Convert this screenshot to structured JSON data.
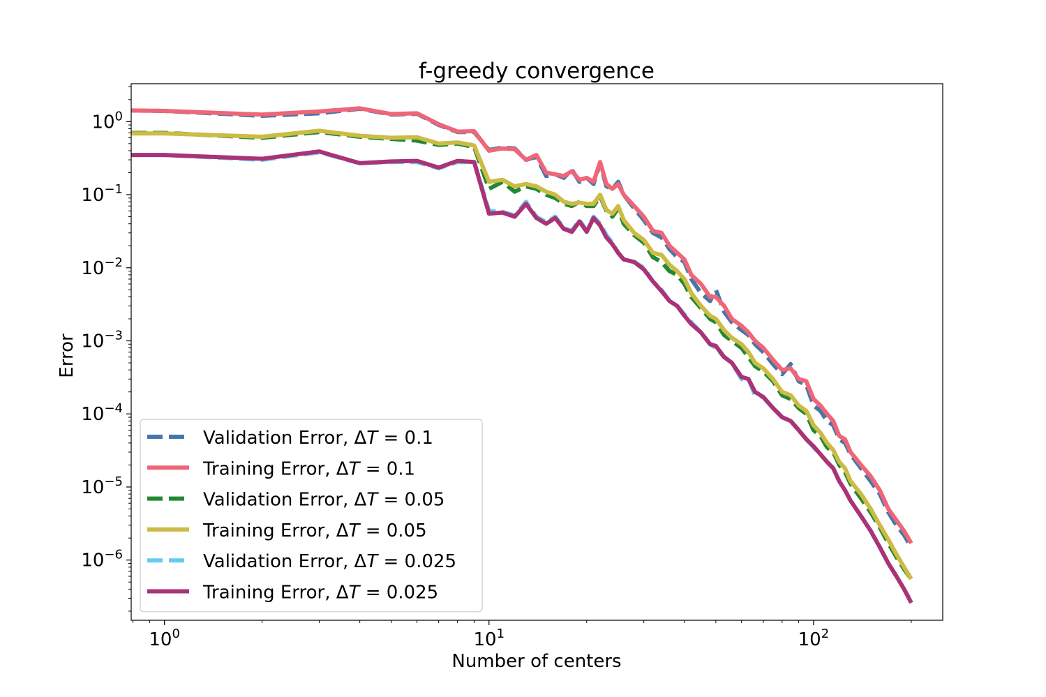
{
  "chart_data": {
    "type": "line",
    "title": "f-greedy convergence",
    "xlabel": "Number of centers",
    "ylabel": "Error",
    "xscale": "log",
    "yscale": "log",
    "xlim": [
      0.79,
      250
    ],
    "ylim": [
      1.5e-07,
      3.3
    ],
    "xticks": [
      {
        "value": 1,
        "base": "10",
        "exp": "0"
      },
      {
        "value": 10,
        "base": "10",
        "exp": "1"
      },
      {
        "value": 100,
        "base": "10",
        "exp": "2"
      }
    ],
    "yticks": [
      {
        "value": 1,
        "base": "10",
        "exp": "0"
      },
      {
        "value": 0.1,
        "base": "10",
        "exp": "−1"
      },
      {
        "value": 0.01,
        "base": "10",
        "exp": "−2"
      },
      {
        "value": 0.001,
        "base": "10",
        "exp": "−3"
      },
      {
        "value": 0.0001,
        "base": "10",
        "exp": "−4"
      },
      {
        "value": 1e-05,
        "base": "10",
        "exp": "−5"
      },
      {
        "value": 1e-06,
        "base": "10",
        "exp": "−6"
      }
    ],
    "legend_position": "lower-left",
    "series": [
      {
        "name": "Validation Error, ΔT = 0.1",
        "label_prefix": "Validation Error, Δ",
        "label_var": "T",
        "label_suffix": " = 0.1",
        "color": "#4477aa",
        "style": "dashed",
        "x": [
          0.79,
          1,
          2,
          3,
          4,
          5,
          6,
          7,
          8,
          9,
          10,
          11,
          12,
          13,
          14,
          15,
          16,
          17,
          18,
          19,
          20,
          21,
          22,
          23,
          24,
          25,
          26,
          28,
          30,
          32,
          34,
          36,
          38,
          40,
          42,
          45,
          48,
          50,
          53,
          56,
          60,
          63,
          66,
          70,
          75,
          80,
          85,
          90,
          95,
          100,
          105,
          110,
          115,
          120,
          125,
          130,
          140,
          150,
          160,
          170,
          180,
          190,
          200
        ],
        "y": [
          1.42,
          1.4,
          1.2,
          1.3,
          1.5,
          1.25,
          1.28,
          0.9,
          0.72,
          0.72,
          0.41,
          0.44,
          0.43,
          0.3,
          0.33,
          0.18,
          0.19,
          0.17,
          0.22,
          0.15,
          0.17,
          0.14,
          0.27,
          0.13,
          0.12,
          0.15,
          0.1,
          0.065,
          0.045,
          0.03,
          0.026,
          0.018,
          0.014,
          0.012,
          0.007,
          0.0045,
          0.0035,
          0.005,
          0.0025,
          0.0018,
          0.0014,
          0.0012,
          0.0009,
          0.0007,
          0.00048,
          0.00035,
          0.00048,
          0.00028,
          0.00025,
          0.00013,
          0.00011,
          8e-05,
          7e-05,
          4.5e-05,
          4e-05,
          2.8e-05,
          1.8e-05,
          1.2e-05,
          8e-06,
          4.5e-06,
          3e-06,
          2.2e-06,
          1.5e-06
        ]
      },
      {
        "name": "Training Error, ΔT = 0.1",
        "label_prefix": "Training Error, Δ",
        "label_var": "T",
        "label_suffix": " = 0.1",
        "color": "#ee6677",
        "style": "solid",
        "x": [
          0.79,
          1,
          2,
          3,
          4,
          5,
          6,
          7,
          8,
          9,
          10,
          11,
          12,
          13,
          14,
          15,
          16,
          17,
          18,
          19,
          20,
          21,
          22,
          23,
          24,
          25,
          26,
          28,
          30,
          32,
          34,
          36,
          38,
          40,
          42,
          45,
          48,
          50,
          53,
          56,
          60,
          63,
          66,
          70,
          75,
          80,
          85,
          90,
          95,
          100,
          105,
          110,
          115,
          120,
          125,
          130,
          140,
          150,
          160,
          170,
          180,
          190,
          200
        ],
        "y": [
          1.42,
          1.4,
          1.25,
          1.38,
          1.52,
          1.27,
          1.3,
          0.92,
          0.73,
          0.74,
          0.4,
          0.43,
          0.42,
          0.3,
          0.35,
          0.2,
          0.19,
          0.18,
          0.21,
          0.16,
          0.17,
          0.15,
          0.28,
          0.14,
          0.12,
          0.14,
          0.1,
          0.07,
          0.05,
          0.032,
          0.03,
          0.02,
          0.016,
          0.013,
          0.008,
          0.006,
          0.004,
          0.004,
          0.003,
          0.002,
          0.0016,
          0.0013,
          0.001,
          0.0008,
          0.00055,
          0.0004,
          0.00042,
          0.0003,
          0.00028,
          0.00016,
          0.00013,
          0.0001,
          8e-05,
          5e-05,
          4.5e-05,
          3e-05,
          2e-05,
          1.4e-05,
          9e-06,
          5e-06,
          3.5e-06,
          2.5e-06,
          1.7e-06
        ]
      },
      {
        "name": "Validation Error, ΔT = 0.05",
        "label_prefix": "Validation Error, Δ",
        "label_var": "T",
        "label_suffix": " = 0.05",
        "color": "#228833",
        "style": "dashed",
        "x": [
          0.79,
          1,
          2,
          3,
          4,
          5,
          6,
          7,
          8,
          9,
          10,
          11,
          12,
          13,
          14,
          15,
          16,
          17,
          18,
          19,
          20,
          21,
          22,
          23,
          24,
          25,
          26,
          28,
          30,
          32,
          34,
          36,
          38,
          40,
          42,
          45,
          48,
          50,
          53,
          56,
          60,
          63,
          66,
          70,
          75,
          80,
          85,
          90,
          95,
          100,
          105,
          110,
          115,
          120,
          125,
          130,
          140,
          150,
          160,
          170,
          180,
          190,
          200
        ],
        "y": [
          0.7,
          0.7,
          0.6,
          0.72,
          0.62,
          0.58,
          0.55,
          0.48,
          0.5,
          0.45,
          0.12,
          0.15,
          0.11,
          0.13,
          0.12,
          0.1,
          0.09,
          0.075,
          0.07,
          0.08,
          0.07,
          0.07,
          0.095,
          0.06,
          0.05,
          0.065,
          0.04,
          0.028,
          0.022,
          0.014,
          0.012,
          0.009,
          0.008,
          0.006,
          0.004,
          0.0028,
          0.002,
          0.0018,
          0.0012,
          0.001,
          0.0008,
          0.0006,
          0.00045,
          0.00038,
          0.00028,
          0.00018,
          0.00016,
          0.00012,
          0.0001,
          6e-05,
          5e-05,
          3.5e-05,
          3e-05,
          2e-05,
          1.6e-05,
          1.1e-05,
          7e-06,
          4.5e-06,
          2.8e-06,
          1.7e-06,
          1.1e-06,
          7.5e-07,
          5.5e-07
        ]
      },
      {
        "name": "Training Error, ΔT = 0.05",
        "label_prefix": "Training Error, Δ",
        "label_var": "T",
        "label_suffix": " = 0.05",
        "color": "#ccbb44",
        "style": "solid",
        "x": [
          0.79,
          1,
          2,
          3,
          4,
          5,
          6,
          7,
          8,
          9,
          10,
          11,
          12,
          13,
          14,
          15,
          16,
          17,
          18,
          19,
          20,
          21,
          22,
          23,
          24,
          25,
          26,
          28,
          30,
          32,
          34,
          36,
          38,
          40,
          42,
          45,
          48,
          50,
          53,
          56,
          60,
          63,
          66,
          70,
          75,
          80,
          85,
          90,
          95,
          100,
          105,
          110,
          115,
          120,
          125,
          130,
          140,
          150,
          160,
          170,
          180,
          190,
          200
        ],
        "y": [
          0.69,
          0.69,
          0.62,
          0.75,
          0.64,
          0.6,
          0.61,
          0.5,
          0.52,
          0.47,
          0.15,
          0.16,
          0.13,
          0.14,
          0.13,
          0.11,
          0.1,
          0.08,
          0.075,
          0.078,
          0.075,
          0.075,
          0.1,
          0.062,
          0.055,
          0.07,
          0.045,
          0.03,
          0.024,
          0.016,
          0.015,
          0.011,
          0.009,
          0.007,
          0.0045,
          0.003,
          0.0022,
          0.002,
          0.0014,
          0.0011,
          0.0009,
          0.0007,
          0.0005,
          0.00042,
          0.0003,
          0.0002,
          0.00018,
          0.00013,
          0.00011,
          7e-05,
          5.5e-05,
          4e-05,
          3.2e-05,
          2.2e-05,
          1.8e-05,
          1.2e-05,
          8e-06,
          5e-06,
          3e-06,
          1.9e-06,
          1.2e-06,
          8e-07,
          5.5e-07
        ]
      },
      {
        "name": "Validation Error, ΔT = 0.025",
        "label_prefix": "Validation Error, Δ",
        "label_var": "T",
        "label_suffix": " = 0.025",
        "color": "#66ccee",
        "style": "dashed",
        "x": [
          0.79,
          1,
          2,
          3,
          4,
          5,
          6,
          7,
          8,
          9,
          10,
          11,
          12,
          13,
          14,
          15,
          16,
          17,
          18,
          19,
          20,
          21,
          22,
          23,
          24,
          25,
          26,
          28,
          30,
          32,
          34,
          36,
          38,
          40,
          42,
          45,
          48,
          50,
          53,
          56,
          60,
          63,
          66,
          70,
          75,
          80,
          85,
          90,
          95,
          100,
          105,
          110,
          115,
          120,
          125,
          130,
          140,
          150,
          160,
          170,
          180,
          190,
          200
        ],
        "y": [
          0.35,
          0.35,
          0.3,
          0.38,
          0.27,
          0.28,
          0.28,
          0.23,
          0.28,
          0.28,
          0.06,
          0.058,
          0.052,
          0.08,
          0.05,
          0.042,
          0.05,
          0.035,
          0.032,
          0.045,
          0.032,
          0.05,
          0.04,
          0.028,
          0.022,
          0.016,
          0.013,
          0.012,
          0.01,
          0.0065,
          0.005,
          0.0035,
          0.003,
          0.0023,
          0.0018,
          0.0013,
          0.0009,
          0.0008,
          0.0006,
          0.0005,
          0.0003,
          0.0003,
          0.00018,
          0.00017,
          0.00012,
          9e-05,
          8e-05,
          6e-05,
          4.5e-05,
          3.5e-05,
          2.8e-05,
          2.2e-05,
          1.8e-05,
          1.2e-05,
          9e-06,
          6.5e-06,
          4e-06,
          2.5e-06,
          1.5e-06,
          9e-07,
          6e-07,
          4e-07,
          2.7e-07
        ]
      },
      {
        "name": "Training Error, ΔT = 0.025",
        "label_prefix": "Training Error, Δ",
        "label_var": "T",
        "label_suffix": " = 0.025",
        "color": "#aa3377",
        "style": "solid",
        "x": [
          0.79,
          1,
          2,
          3,
          4,
          5,
          6,
          7,
          8,
          9,
          10,
          11,
          12,
          13,
          14,
          15,
          16,
          17,
          18,
          19,
          20,
          21,
          22,
          23,
          24,
          25,
          26,
          28,
          30,
          32,
          34,
          36,
          38,
          40,
          42,
          45,
          48,
          50,
          53,
          56,
          60,
          63,
          66,
          70,
          75,
          80,
          85,
          90,
          95,
          100,
          105,
          110,
          115,
          120,
          125,
          130,
          140,
          150,
          160,
          170,
          180,
          190,
          200
        ],
        "y": [
          0.35,
          0.35,
          0.31,
          0.39,
          0.27,
          0.285,
          0.29,
          0.235,
          0.29,
          0.28,
          0.055,
          0.057,
          0.05,
          0.075,
          0.048,
          0.04,
          0.048,
          0.034,
          0.031,
          0.043,
          0.031,
          0.048,
          0.038,
          0.026,
          0.021,
          0.016,
          0.013,
          0.012,
          0.0095,
          0.0065,
          0.0048,
          0.0035,
          0.003,
          0.0022,
          0.0017,
          0.0013,
          0.0009,
          0.00085,
          0.0006,
          0.0005,
          0.00032,
          0.0003,
          0.0002,
          0.00017,
          0.00012,
          9e-05,
          8e-05,
          6e-05,
          4.5e-05,
          3.6e-05,
          2.8e-05,
          2.2e-05,
          1.8e-05,
          1.2e-05,
          9e-06,
          6.5e-06,
          4e-06,
          2.5e-06,
          1.5e-06,
          9e-07,
          6e-07,
          4e-07,
          2.6e-07
        ]
      }
    ]
  }
}
